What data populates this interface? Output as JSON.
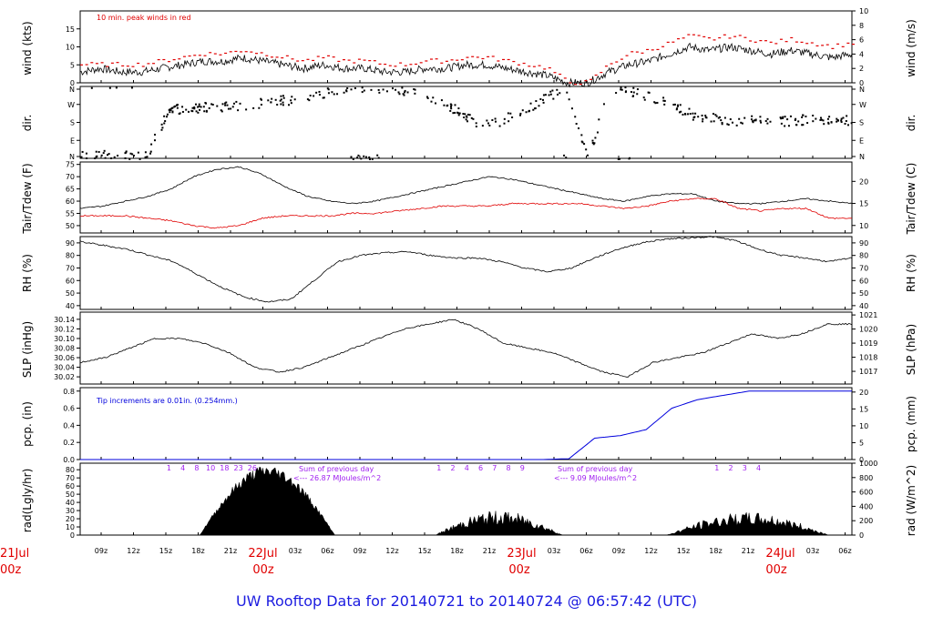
{
  "title": "UW Rooftop Data for 20140721  to  20140724 @ 06:57:42  (UTC)",
  "colors": {
    "red": "#e00000",
    "blue": "#0000dd",
    "purple": "#a020f0",
    "title_blue": "#1c1ce0"
  },
  "x_axis": {
    "hour_ticks": [
      "09z",
      "12z",
      "15z",
      "18z",
      "21z",
      "22Jul",
      "03z",
      "06z",
      "09z",
      "12z",
      "15z",
      "18z",
      "21z",
      "23Jul",
      "03z",
      "06z",
      "09z",
      "12z",
      "15z",
      "18z",
      "21z",
      "24Jul",
      "03z",
      "06z"
    ],
    "day_labels": [
      {
        "line1": "21Jul",
        "line2": "00z"
      },
      {
        "line1": "22Jul",
        "line2": "00z"
      },
      {
        "line1": "23Jul",
        "line2": "00z"
      },
      {
        "line1": "24Jul",
        "line2": "00z"
      }
    ]
  },
  "chart_data": [
    {
      "type": "line",
      "id": "wind",
      "ylabel": "wind (kts)",
      "ylabel_right": "wind (m/s)",
      "yticks": [
        0,
        5,
        10,
        15
      ],
      "yticks_right": [
        0,
        2,
        4,
        6,
        8,
        10
      ],
      "annotation": "10 min. peak winds in red",
      "series": [
        {
          "name": "",
          "values": [
            3,
            4,
            3,
            3,
            4,
            5,
            6,
            6,
            7,
            6,
            5,
            4,
            5,
            4,
            4,
            3,
            3,
            4,
            4,
            5,
            5,
            4,
            3,
            2,
            0,
            0,
            3,
            5,
            6,
            8,
            10,
            9,
            10,
            9,
            8,
            9,
            8,
            7,
            8
          ]
        },
        {
          "name": "10 min. peak winds",
          "values": [
            5,
            5,
            5,
            5,
            6,
            7,
            8,
            8,
            9,
            8,
            7,
            6,
            7,
            6,
            6,
            5,
            5,
            6,
            6,
            7,
            7,
            6,
            5,
            4,
            0,
            0,
            5,
            8,
            9,
            11,
            13,
            12,
            13,
            12,
            11,
            12,
            11,
            10,
            11
          ]
        }
      ]
    },
    {
      "type": "scatter",
      "id": "dir",
      "ylabel": "dir.",
      "ylabel_right": "dir.",
      "yticks": [
        "N",
        "E",
        "S",
        "W",
        "N"
      ]
    },
    {
      "type": "line",
      "id": "temp",
      "ylabel": "Tair/Tdew (F)",
      "ylabel_right": "Tair/Tdew (C)",
      "yticks": [
        50,
        55,
        60,
        65,
        70,
        75
      ],
      "yticks_right": [
        10,
        15,
        20
      ],
      "series": [
        {
          "name": "Tair",
          "values": [
            57,
            58,
            60,
            62,
            65,
            70,
            73,
            74,
            71,
            66,
            62,
            60,
            59,
            60,
            62,
            64,
            66,
            68,
            70,
            69,
            67,
            65,
            63,
            61,
            60,
            62,
            63,
            63,
            60,
            59,
            59,
            60,
            61,
            60,
            59
          ]
        },
        {
          "name": "Tdew",
          "values": [
            54,
            54,
            54,
            53,
            52,
            50,
            49,
            50,
            53,
            54,
            54,
            54,
            55,
            55,
            56,
            57,
            58,
            58,
            58,
            59,
            59,
            59,
            59,
            58,
            57,
            58,
            60,
            61,
            61,
            57,
            56,
            57,
            57,
            53,
            53
          ]
        }
      ]
    },
    {
      "type": "line",
      "id": "rh",
      "ylabel": "RH (%)",
      "ylabel_right": "RH (%)",
      "yticks": [
        40,
        50,
        60,
        70,
        80,
        90
      ],
      "yticks_right": [
        40,
        50,
        60,
        70,
        80,
        90
      ],
      "values": [
        91,
        88,
        85,
        80,
        75,
        65,
        55,
        47,
        43,
        45,
        60,
        75,
        80,
        82,
        83,
        80,
        78,
        78,
        75,
        70,
        67,
        70,
        78,
        85,
        90,
        93,
        94,
        95,
        92,
        85,
        80,
        78,
        75,
        78
      ]
    },
    {
      "type": "line",
      "id": "slp",
      "ylabel": "SLP (inHg)",
      "ylabel_right": "SLP (hPa)",
      "yticks": [
        30.02,
        30.04,
        30.06,
        30.08,
        30.1,
        30.12,
        30.14
      ],
      "yticks_right": [
        1017,
        1018,
        1019,
        1020,
        1021
      ],
      "values": [
        30.05,
        30.06,
        30.08,
        30.1,
        30.1,
        30.09,
        30.07,
        30.04,
        30.03,
        30.04,
        30.06,
        30.08,
        30.1,
        30.12,
        30.13,
        30.14,
        30.12,
        30.09,
        30.08,
        30.07,
        30.05,
        30.03,
        30.02,
        30.05,
        30.06,
        30.07,
        30.09,
        30.11,
        30.1,
        30.11,
        30.13,
        30.13
      ]
    },
    {
      "type": "line",
      "id": "pcp",
      "ylabel": "pcp. (in)",
      "ylabel_right": "pcp. (mm)",
      "yticks": [
        0,
        0.2,
        0.4,
        0.6,
        0.8
      ],
      "yticks_right": [
        0,
        5,
        10,
        15,
        20
      ],
      "annotation": "Tip increments are 0.01in. (0.254mm.)",
      "values": [
        0,
        0,
        0,
        0,
        0,
        0,
        0,
        0,
        0,
        0,
        0,
        0,
        0,
        0,
        0,
        0,
        0,
        0,
        0,
        0.01,
        0.25,
        0.28,
        0.35,
        0.6,
        0.7,
        0.75,
        0.8,
        0.8,
        0.8,
        0.8,
        0.8
      ]
    },
    {
      "type": "area",
      "id": "rad",
      "ylabel": "rad(Lgly/hr)",
      "ylabel_right": "rad (W/m^2)",
      "yticks": [
        0,
        10,
        20,
        30,
        40,
        50,
        60,
        70,
        80
      ],
      "yticks_right": [
        0,
        200,
        400,
        600,
        800,
        1000
      ],
      "hour_marks": [
        {
          "text": "1",
          "day": 0
        },
        {
          "text": "4",
          "day": 0
        },
        {
          "text": "8",
          "day": 0
        },
        {
          "text": "10",
          "day": 0
        },
        {
          "text": "18",
          "day": 0
        },
        {
          "text": "23",
          "day": 0
        },
        {
          "text": "26",
          "day": 0
        },
        {
          "text": "1",
          "day": 1
        },
        {
          "text": "2",
          "day": 1
        },
        {
          "text": "4",
          "day": 1
        },
        {
          "text": "6",
          "day": 1
        },
        {
          "text": "7",
          "day": 1
        },
        {
          "text": "8",
          "day": 1
        },
        {
          "text": "9",
          "day": 1
        },
        {
          "text": "1",
          "day": 2
        },
        {
          "text": "2",
          "day": 2
        },
        {
          "text": "3",
          "day": 2
        },
        {
          "text": "4",
          "day": 2
        }
      ],
      "summaries": [
        {
          "line1": "Sum of previous day",
          "line2": "<--- 26.87 MJoules/m^2"
        },
        {
          "line1": "Sum of previous day",
          "line2": "<--- 9.09 MJoules/m^2"
        }
      ],
      "days": [
        {
          "start": 0.155,
          "end": 0.33,
          "peak": 82
        },
        {
          "start": 0.46,
          "end": 0.625,
          "peak": 30
        },
        {
          "start": 0.76,
          "end": 0.97,
          "peak": 28
        }
      ]
    }
  ]
}
